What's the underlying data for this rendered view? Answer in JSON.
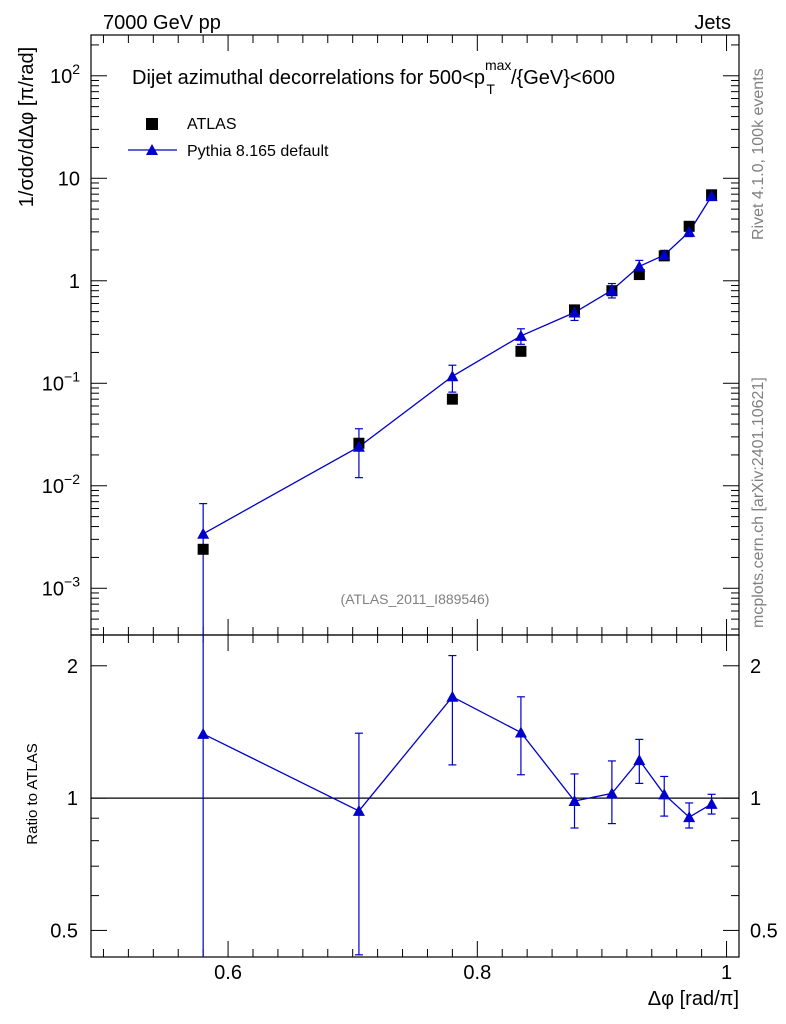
{
  "header": {
    "energy_label": "7000 GeV pp",
    "category_label": "Jets"
  },
  "side": {
    "rivet_label": "Rivet 4.1.0,  100k events",
    "mcplots_label": "mcplots.cern.ch [arXiv:2401.10621]"
  },
  "chart_data": [
    {
      "type": "scatter",
      "panel": "main",
      "title_prefix": "Dijet azimuthal decorrelations for 500<p",
      "title_sup": "max",
      "title_sub": "T",
      "title_suffix": "/{GeV}<600",
      "ylabel": "1/σdσ/dΔφ [π/rad]",
      "yscale": "log",
      "ylim": [
        0.00035,
        250
      ],
      "xlim": [
        0.49,
        1.01
      ],
      "ticks_y": [
        {
          "v": 100,
          "mant": "10",
          "exp": "2"
        },
        {
          "v": 10,
          "mant": "10",
          "exp": ""
        },
        {
          "v": 1,
          "mant": "1",
          "exp": ""
        },
        {
          "v": 0.1,
          "mant": "10",
          "exp": "−1"
        },
        {
          "v": 0.01,
          "mant": "10",
          "exp": "−2"
        },
        {
          "v": 0.001,
          "mant": "10",
          "exp": "−3"
        }
      ],
      "watermark": "(ATLAS_2011_I889546)",
      "legend": [
        {
          "name": "ATLAS",
          "marker": "square",
          "color": "#000000"
        },
        {
          "name": "Pythia 8.165 default",
          "marker": "triangle",
          "color": "#0000cc"
        }
      ],
      "series": [
        {
          "name": "ATLAS",
          "x": [
            0.58,
            0.705,
            0.78,
            0.835,
            0.878,
            0.908,
            0.93,
            0.95,
            0.97,
            0.988
          ],
          "y": [
            0.0024,
            0.026,
            0.07,
            0.205,
            0.52,
            0.8,
            1.15,
            1.75,
            3.4,
            6.9
          ],
          "yerr_lo": [
            0.0,
            0.0,
            0.0,
            0.0,
            0.0,
            0.0,
            0.0,
            0.0,
            0.0,
            0.0
          ],
          "yerr_hi": [
            0.0,
            0.0,
            0.0,
            0.0,
            0.0,
            0.0,
            0.0,
            0.0,
            0.0,
            0.0
          ]
        },
        {
          "name": "Pythia 8.165 default",
          "x": [
            0.58,
            0.705,
            0.78,
            0.835,
            0.878,
            0.908,
            0.93,
            0.95,
            0.97,
            0.988
          ],
          "y": [
            0.0034,
            0.024,
            0.117,
            0.29,
            0.49,
            0.81,
            1.38,
            1.78,
            3.0,
            6.7
          ],
          "yerr_lo": [
            0.0031,
            0.012,
            0.035,
            0.05,
            0.08,
            0.13,
            0.2,
            0.2,
            0.3,
            0.4
          ],
          "yerr_hi": [
            0.0033,
            0.012,
            0.033,
            0.05,
            0.08,
            0.13,
            0.2,
            0.2,
            0.3,
            0.4
          ]
        }
      ]
    },
    {
      "type": "line",
      "panel": "ratio",
      "ylabel": "Ratio to ATLAS",
      "xlabel": "Δφ [rad/π]",
      "yscale": "log",
      "ylim": [
        0.435,
        2.35
      ],
      "xlim": [
        0.49,
        1.01
      ],
      "reference_line": 1,
      "ticks_x": [
        {
          "v": 0.6,
          "label": "0.6"
        },
        {
          "v": 0.8,
          "label": "0.8"
        },
        {
          "v": 1.0,
          "label": "1"
        }
      ],
      "ticks_y": [
        {
          "v": 2,
          "label": "2"
        },
        {
          "v": 1,
          "label": "1"
        },
        {
          "v": 0.5,
          "label": "0.5"
        }
      ],
      "series": [
        {
          "name": "Pythia 8.165 default",
          "x": [
            0.58,
            0.705,
            0.78,
            0.835,
            0.878,
            0.908,
            0.93,
            0.95,
            0.97,
            0.988
          ],
          "y": [
            1.4,
            0.935,
            1.7,
            1.41,
            0.985,
            1.025,
            1.22,
            1.02,
            0.905,
            0.97
          ],
          "yerr_lo": [
            1.0,
            0.495,
            0.51,
            0.28,
            0.13,
            0.15,
            0.14,
            0.11,
            0.05,
            0.05
          ],
          "yerr_hi": [
            1.0,
            0.47,
            0.41,
            0.29,
            0.15,
            0.19,
            0.14,
            0.1,
            0.07,
            0.05
          ]
        }
      ]
    }
  ]
}
